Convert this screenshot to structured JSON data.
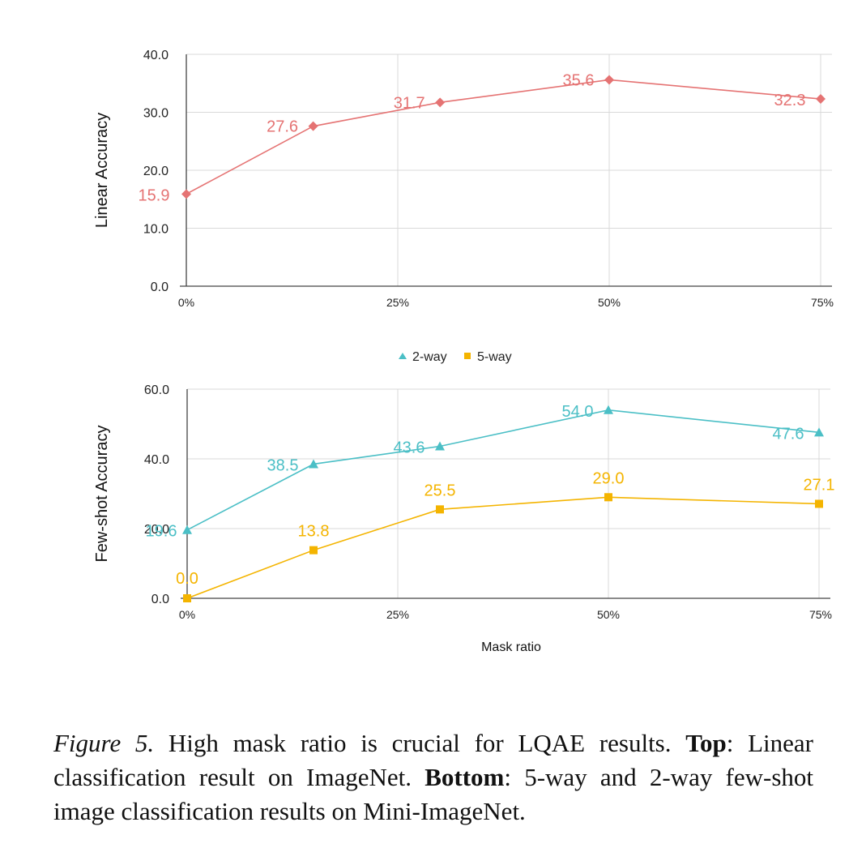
{
  "chart_data": [
    {
      "type": "line",
      "ylabel": "Linear Accuracy",
      "x_ticks": [
        "0%",
        "25%",
        "50%",
        "75%"
      ],
      "xlim": [
        0,
        75
      ],
      "ylim": [
        0,
        40
      ],
      "y_ticks": [
        "0.0",
        "10.0",
        "20.0",
        "30.0",
        "40.0"
      ],
      "grid": true,
      "series": [
        {
          "marker": "diamond",
          "color": "#e57373",
          "points": [
            {
              "x": 0,
              "y": 15.9,
              "label": "15.9"
            },
            {
              "x": 15,
              "y": 27.6,
              "label": "27.6"
            },
            {
              "x": 30,
              "y": 31.7,
              "label": "31.7"
            },
            {
              "x": 50,
              "y": 35.6,
              "label": "35.6"
            },
            {
              "x": 75,
              "y": 32.3,
              "label": "32.3"
            }
          ]
        }
      ]
    },
    {
      "type": "line",
      "ylabel": "Few-shot Accuracy",
      "xlabel": "Mask ratio",
      "x_ticks": [
        "0%",
        "25%",
        "50%",
        "75%"
      ],
      "xlim": [
        0,
        75
      ],
      "ylim": [
        0,
        60
      ],
      "y_ticks": [
        "0.0",
        "20.0",
        "40.0",
        "60.0"
      ],
      "grid": true,
      "legend": "top-center",
      "series": [
        {
          "name": "2-way",
          "marker": "triangle",
          "color": "#4bbfc6",
          "points": [
            {
              "x": 0,
              "y": 19.6,
              "label": "19.6"
            },
            {
              "x": 15,
              "y": 38.5,
              "label": "38.5"
            },
            {
              "x": 30,
              "y": 43.6,
              "label": "43.6"
            },
            {
              "x": 50,
              "y": 54.0,
              "label": "54.0"
            },
            {
              "x": 75,
              "y": 47.6,
              "label": "47.6"
            }
          ]
        },
        {
          "name": "5-way",
          "marker": "square",
          "color": "#f4b400",
          "points": [
            {
              "x": 0,
              "y": 0.0,
              "label": "0.0"
            },
            {
              "x": 15,
              "y": 13.8,
              "label": "13.8"
            },
            {
              "x": 30,
              "y": 25.5,
              "label": "25.5"
            },
            {
              "x": 50,
              "y": 29.0,
              "label": "29.0"
            },
            {
              "x": 75,
              "y": 27.1,
              "label": "27.1"
            }
          ]
        }
      ]
    }
  ],
  "caption": {
    "figure": "Figure 5.",
    "text1": " High mask ratio is crucial for LQAE results. ",
    "top_label": "Top",
    "text2": ": Linear classification result on ImageNet.  ",
    "bottom_label": "Bottom",
    "text3": ": 5-way and 2-way few-shot image classification results on Mini-ImageNet."
  }
}
